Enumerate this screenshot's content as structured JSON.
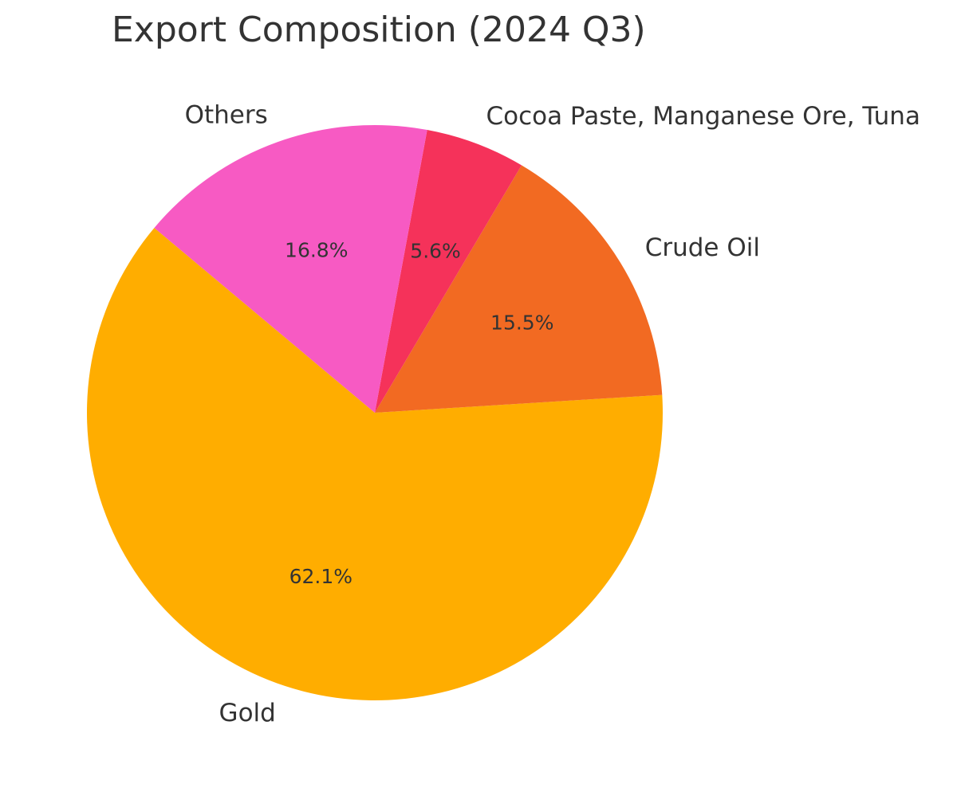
{
  "chart_data": {
    "type": "pie",
    "title": "Export Composition (2024 Q3)",
    "slices": [
      {
        "label": "Gold",
        "value": 62.1,
        "display": "62.1%",
        "color": "#FFAD00"
      },
      {
        "label": "Crude Oil",
        "value": 15.5,
        "display": "15.5%",
        "color": "#F26A22"
      },
      {
        "label": "Cocoa Paste, Manganese Ore, Tuna",
        "value": 5.6,
        "display": "5.6%",
        "color": "#F5325A"
      },
      {
        "label": "Others",
        "value": 16.8,
        "display": "16.8%",
        "color": "#F75AC3"
      }
    ]
  }
}
